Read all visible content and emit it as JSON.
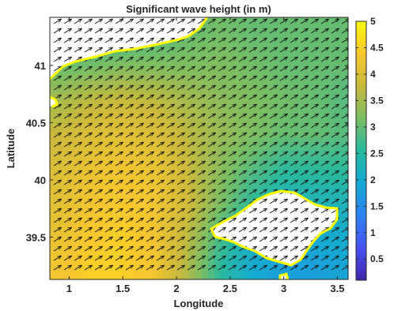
{
  "chart_data": {
    "type": "heatmap",
    "title": "Significant wave height (in m)",
    "xlabel": "Longitude",
    "ylabel": "Latitude",
    "xlim": [
      0.82,
      3.6
    ],
    "ylim": [
      39.13,
      41.42
    ],
    "x_ticks": [
      "1",
      "1.5",
      "2",
      "2.5",
      "3",
      "3.5"
    ],
    "y_ticks": [
      "39.5",
      "40",
      "40.5",
      "41"
    ],
    "colorbar": {
      "range": [
        0.1,
        5.0
      ],
      "ticks": [
        "0.5",
        "1",
        "1.5",
        "2",
        "2.5",
        "3",
        "3.5",
        "4",
        "4.5",
        "5"
      ]
    },
    "overlay": "wave direction arrows pointing north-east",
    "coastline_color": "#ffff00",
    "land_color": "#ffffff",
    "wave_height_m": {
      "lon": [
        0.9,
        1.2,
        1.5,
        1.8,
        2.1,
        2.4,
        2.7,
        3.0,
        3.3,
        3.55
      ],
      "lat": [
        41.3,
        41.0,
        40.7,
        40.4,
        40.1,
        39.8,
        39.5,
        39.25
      ],
      "values": [
        [
          2.5,
          2.5,
          2.7,
          2.8,
          3.0,
          3.1,
          3.0,
          3.0,
          3.0,
          3.0
        ],
        [
          3.0,
          3.1,
          3.2,
          3.2,
          3.2,
          3.2,
          3.1,
          3.0,
          3.0,
          3.0
        ],
        [
          3.5,
          3.7,
          3.8,
          3.7,
          3.5,
          3.3,
          3.2,
          3.1,
          3.0,
          2.9
        ],
        [
          3.8,
          4.0,
          4.1,
          4.0,
          3.7,
          3.4,
          3.2,
          3.0,
          3.0,
          2.9
        ],
        [
          4.0,
          4.2,
          4.3,
          4.2,
          3.8,
          3.3,
          2.9,
          2.6,
          2.6,
          2.6
        ],
        [
          4.1,
          4.3,
          4.4,
          4.3,
          3.9,
          3.2,
          2.6,
          2.3,
          2.3,
          2.3
        ],
        [
          4.2,
          4.4,
          4.5,
          4.3,
          3.7,
          2.8,
          2.2,
          2.0,
          2.0,
          2.0
        ],
        [
          4.3,
          4.5,
          4.5,
          4.3,
          3.6,
          2.6,
          2.0,
          1.8,
          1.8,
          1.9
        ]
      ]
    }
  }
}
